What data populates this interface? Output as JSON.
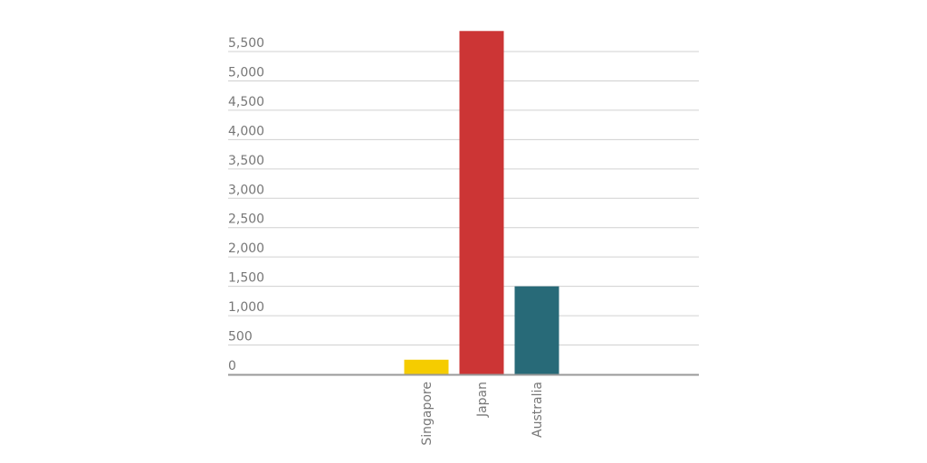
{
  "chart_data": {
    "type": "bar",
    "categories": [
      "Singapore",
      "Japan",
      "Australia"
    ],
    "values": [
      250,
      5850,
      1500
    ],
    "colors": [
      "#f5cc00",
      "#cc3535",
      "#286a78"
    ],
    "ylim": [
      0,
      5900
    ],
    "yticks": [
      0,
      {
        "value": 500,
        "label": "500"
      },
      {
        "value": 1000,
        "label": "1,000"
      },
      {
        "value": 1500,
        "label": "1,500"
      },
      {
        "value": 2000,
        "label": "2,000"
      },
      {
        "value": 2500,
        "label": "2,500"
      },
      {
        "value": 3000,
        "label": "3,000"
      },
      {
        "value": 3500,
        "label": "3,500"
      },
      {
        "value": 4000,
        "label": "4,000"
      },
      {
        "value": 4500,
        "label": "4,500"
      },
      {
        "value": 5000,
        "label": "5,000"
      },
      {
        "value": 5500,
        "label": "5,500"
      }
    ],
    "grid": true
  }
}
